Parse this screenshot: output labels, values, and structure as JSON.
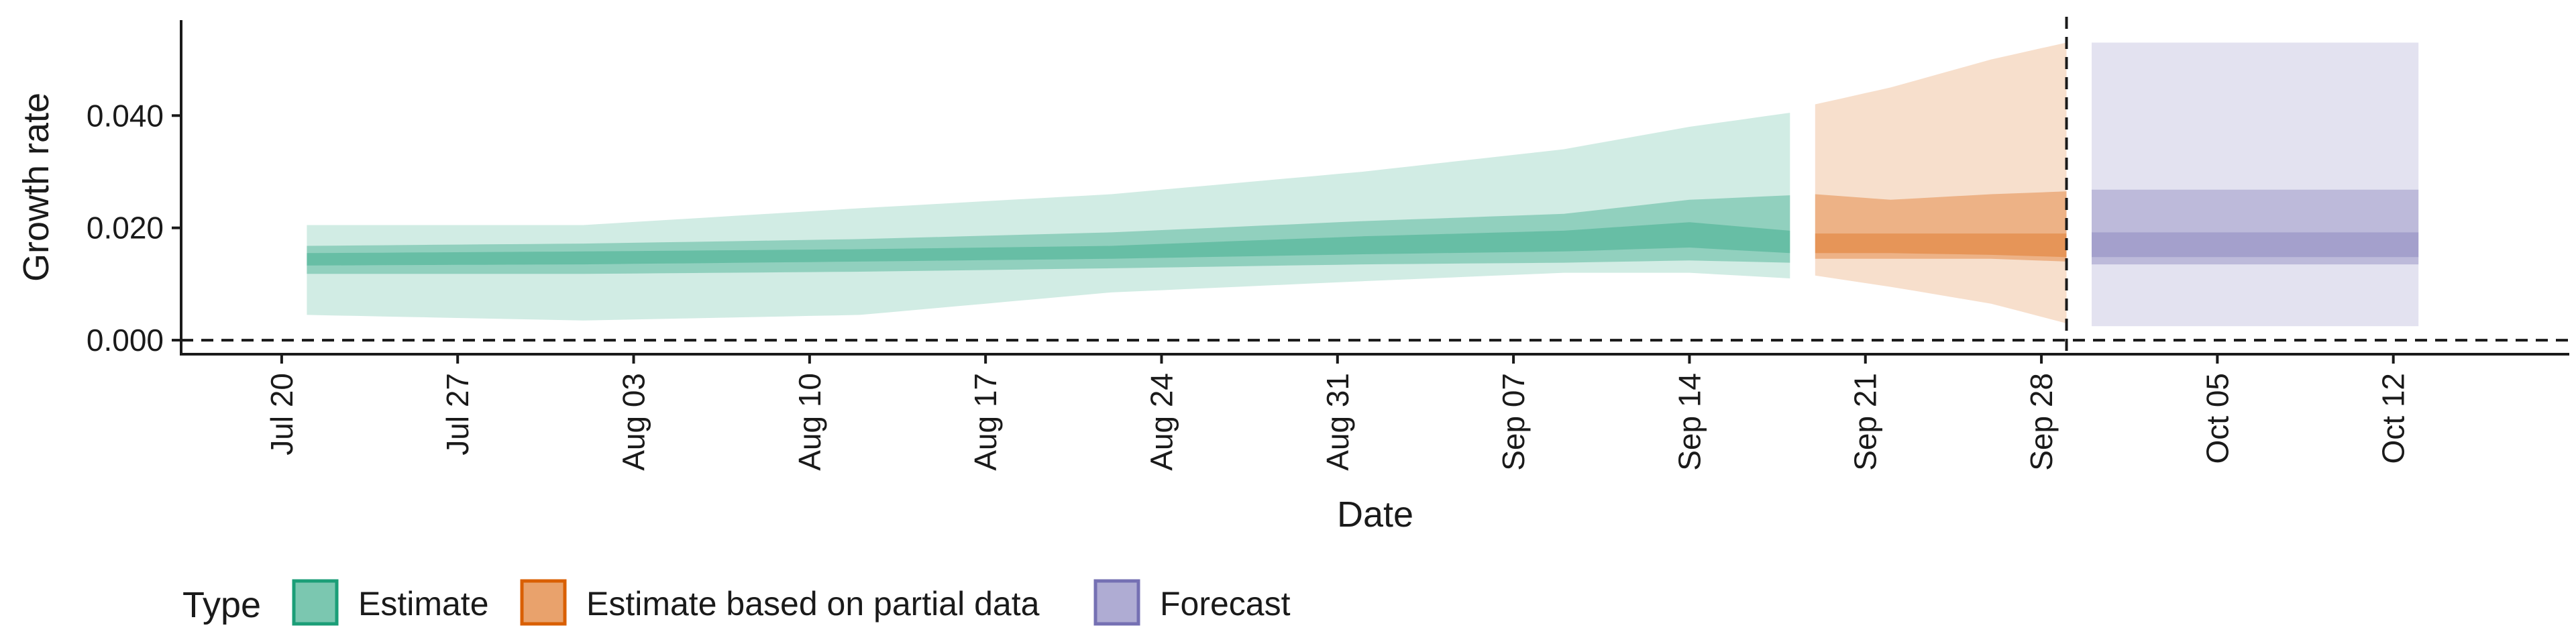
{
  "chart_data": {
    "type": "area",
    "title": "",
    "xlabel": "Date",
    "ylabel": "Growth rate",
    "x_start": "2020-07-21",
    "x_end": "2020-10-13",
    "xlim": [
      "2020-07-16",
      "2020-10-19"
    ],
    "ylim": [
      -0.0025,
      0.057
    ],
    "y_ticks": [
      0.0,
      0.02,
      0.04
    ],
    "y_tick_labels": [
      "0.000",
      "0.020",
      "0.040"
    ],
    "x_ticks": [
      "2020-07-20",
      "2020-07-27",
      "2020-08-03",
      "2020-08-10",
      "2020-08-17",
      "2020-08-24",
      "2020-08-31",
      "2020-09-07",
      "2020-09-14",
      "2020-09-21",
      "2020-09-28",
      "2020-10-05",
      "2020-10-12"
    ],
    "x_tick_labels": [
      "Jul 20",
      "Jul 27",
      "Aug 03",
      "Aug 10",
      "Aug 17",
      "Aug 24",
      "Aug 31",
      "Sep 07",
      "Sep 14",
      "Sep 21",
      "Sep 28",
      "Oct 05",
      "Oct 12"
    ],
    "hline": 0.0,
    "vline": "2020-09-29",
    "grid": false,
    "legend": {
      "title": "Type",
      "position": "bottom-left",
      "entries": [
        "Estimate",
        "Estimate based on partial data",
        "Forecast"
      ]
    },
    "colors": {
      "Estimate": "#1b9e77",
      "Estimate based on partial data": "#d95f02",
      "Forecast": "#7570b3"
    },
    "series": [
      {
        "name": "Estimate",
        "start": "2020-07-21",
        "end": "2020-09-18",
        "knots": [
          {
            "date": "2020-07-21",
            "lo90": 0.0045,
            "hi90": 0.0205,
            "lo50": 0.0118,
            "hi50": 0.0168,
            "lo20": 0.0133,
            "hi20": 0.0155
          },
          {
            "date": "2020-08-01",
            "lo90": 0.0035,
            "hi90": 0.0205,
            "lo50": 0.0118,
            "hi50": 0.0172,
            "lo20": 0.0135,
            "hi20": 0.0158
          },
          {
            "date": "2020-08-12",
            "lo90": 0.0045,
            "hi90": 0.0235,
            "lo50": 0.0122,
            "hi50": 0.018,
            "lo20": 0.014,
            "hi20": 0.0162
          },
          {
            "date": "2020-08-22",
            "lo90": 0.0085,
            "hi90": 0.026,
            "lo50": 0.0128,
            "hi50": 0.0192,
            "lo20": 0.0145,
            "hi20": 0.0168
          },
          {
            "date": "2020-09-01",
            "lo90": 0.0105,
            "hi90": 0.03,
            "lo50": 0.0135,
            "hi50": 0.0212,
            "lo20": 0.0153,
            "hi20": 0.0185
          },
          {
            "date": "2020-09-09",
            "lo90": 0.012,
            "hi90": 0.034,
            "lo50": 0.0138,
            "hi50": 0.0225,
            "lo20": 0.0158,
            "hi20": 0.0195
          },
          {
            "date": "2020-09-14",
            "lo90": 0.012,
            "hi90": 0.038,
            "lo50": 0.0142,
            "hi50": 0.025,
            "lo20": 0.0165,
            "hi20": 0.021
          },
          {
            "date": "2020-09-18",
            "lo90": 0.011,
            "hi90": 0.0405,
            "lo50": 0.0138,
            "hi50": 0.0258,
            "lo20": 0.0155,
            "hi20": 0.0195
          }
        ]
      },
      {
        "name": "Estimate based on partial data",
        "start": "2020-09-19",
        "end": "2020-09-29",
        "knots": [
          {
            "date": "2020-09-19",
            "lo90": 0.0115,
            "hi90": 0.042,
            "lo50": 0.0145,
            "hi50": 0.026,
            "lo20": 0.0155,
            "hi20": 0.019
          },
          {
            "date": "2020-09-22",
            "lo90": 0.0095,
            "hi90": 0.045,
            "lo50": 0.0145,
            "hi50": 0.025,
            "lo20": 0.0155,
            "hi20": 0.019
          },
          {
            "date": "2020-09-26",
            "lo90": 0.0065,
            "hi90": 0.05,
            "lo50": 0.0145,
            "hi50": 0.026,
            "lo20": 0.0152,
            "hi20": 0.019
          },
          {
            "date": "2020-09-29",
            "lo90": 0.003,
            "hi90": 0.053,
            "lo50": 0.014,
            "hi50": 0.0265,
            "lo20": 0.0148,
            "hi20": 0.019
          }
        ]
      },
      {
        "name": "Forecast",
        "start": "2020-09-30",
        "end": "2020-10-13",
        "knots": [
          {
            "date": "2020-09-30",
            "lo90": 0.0025,
            "hi90": 0.053,
            "lo50": 0.0135,
            "hi50": 0.0268,
            "lo20": 0.0148,
            "hi20": 0.0192
          },
          {
            "date": "2020-10-13",
            "lo90": 0.0025,
            "hi90": 0.053,
            "lo50": 0.0135,
            "hi50": 0.0268,
            "lo20": 0.0148,
            "hi20": 0.0192
          }
        ]
      }
    ]
  }
}
